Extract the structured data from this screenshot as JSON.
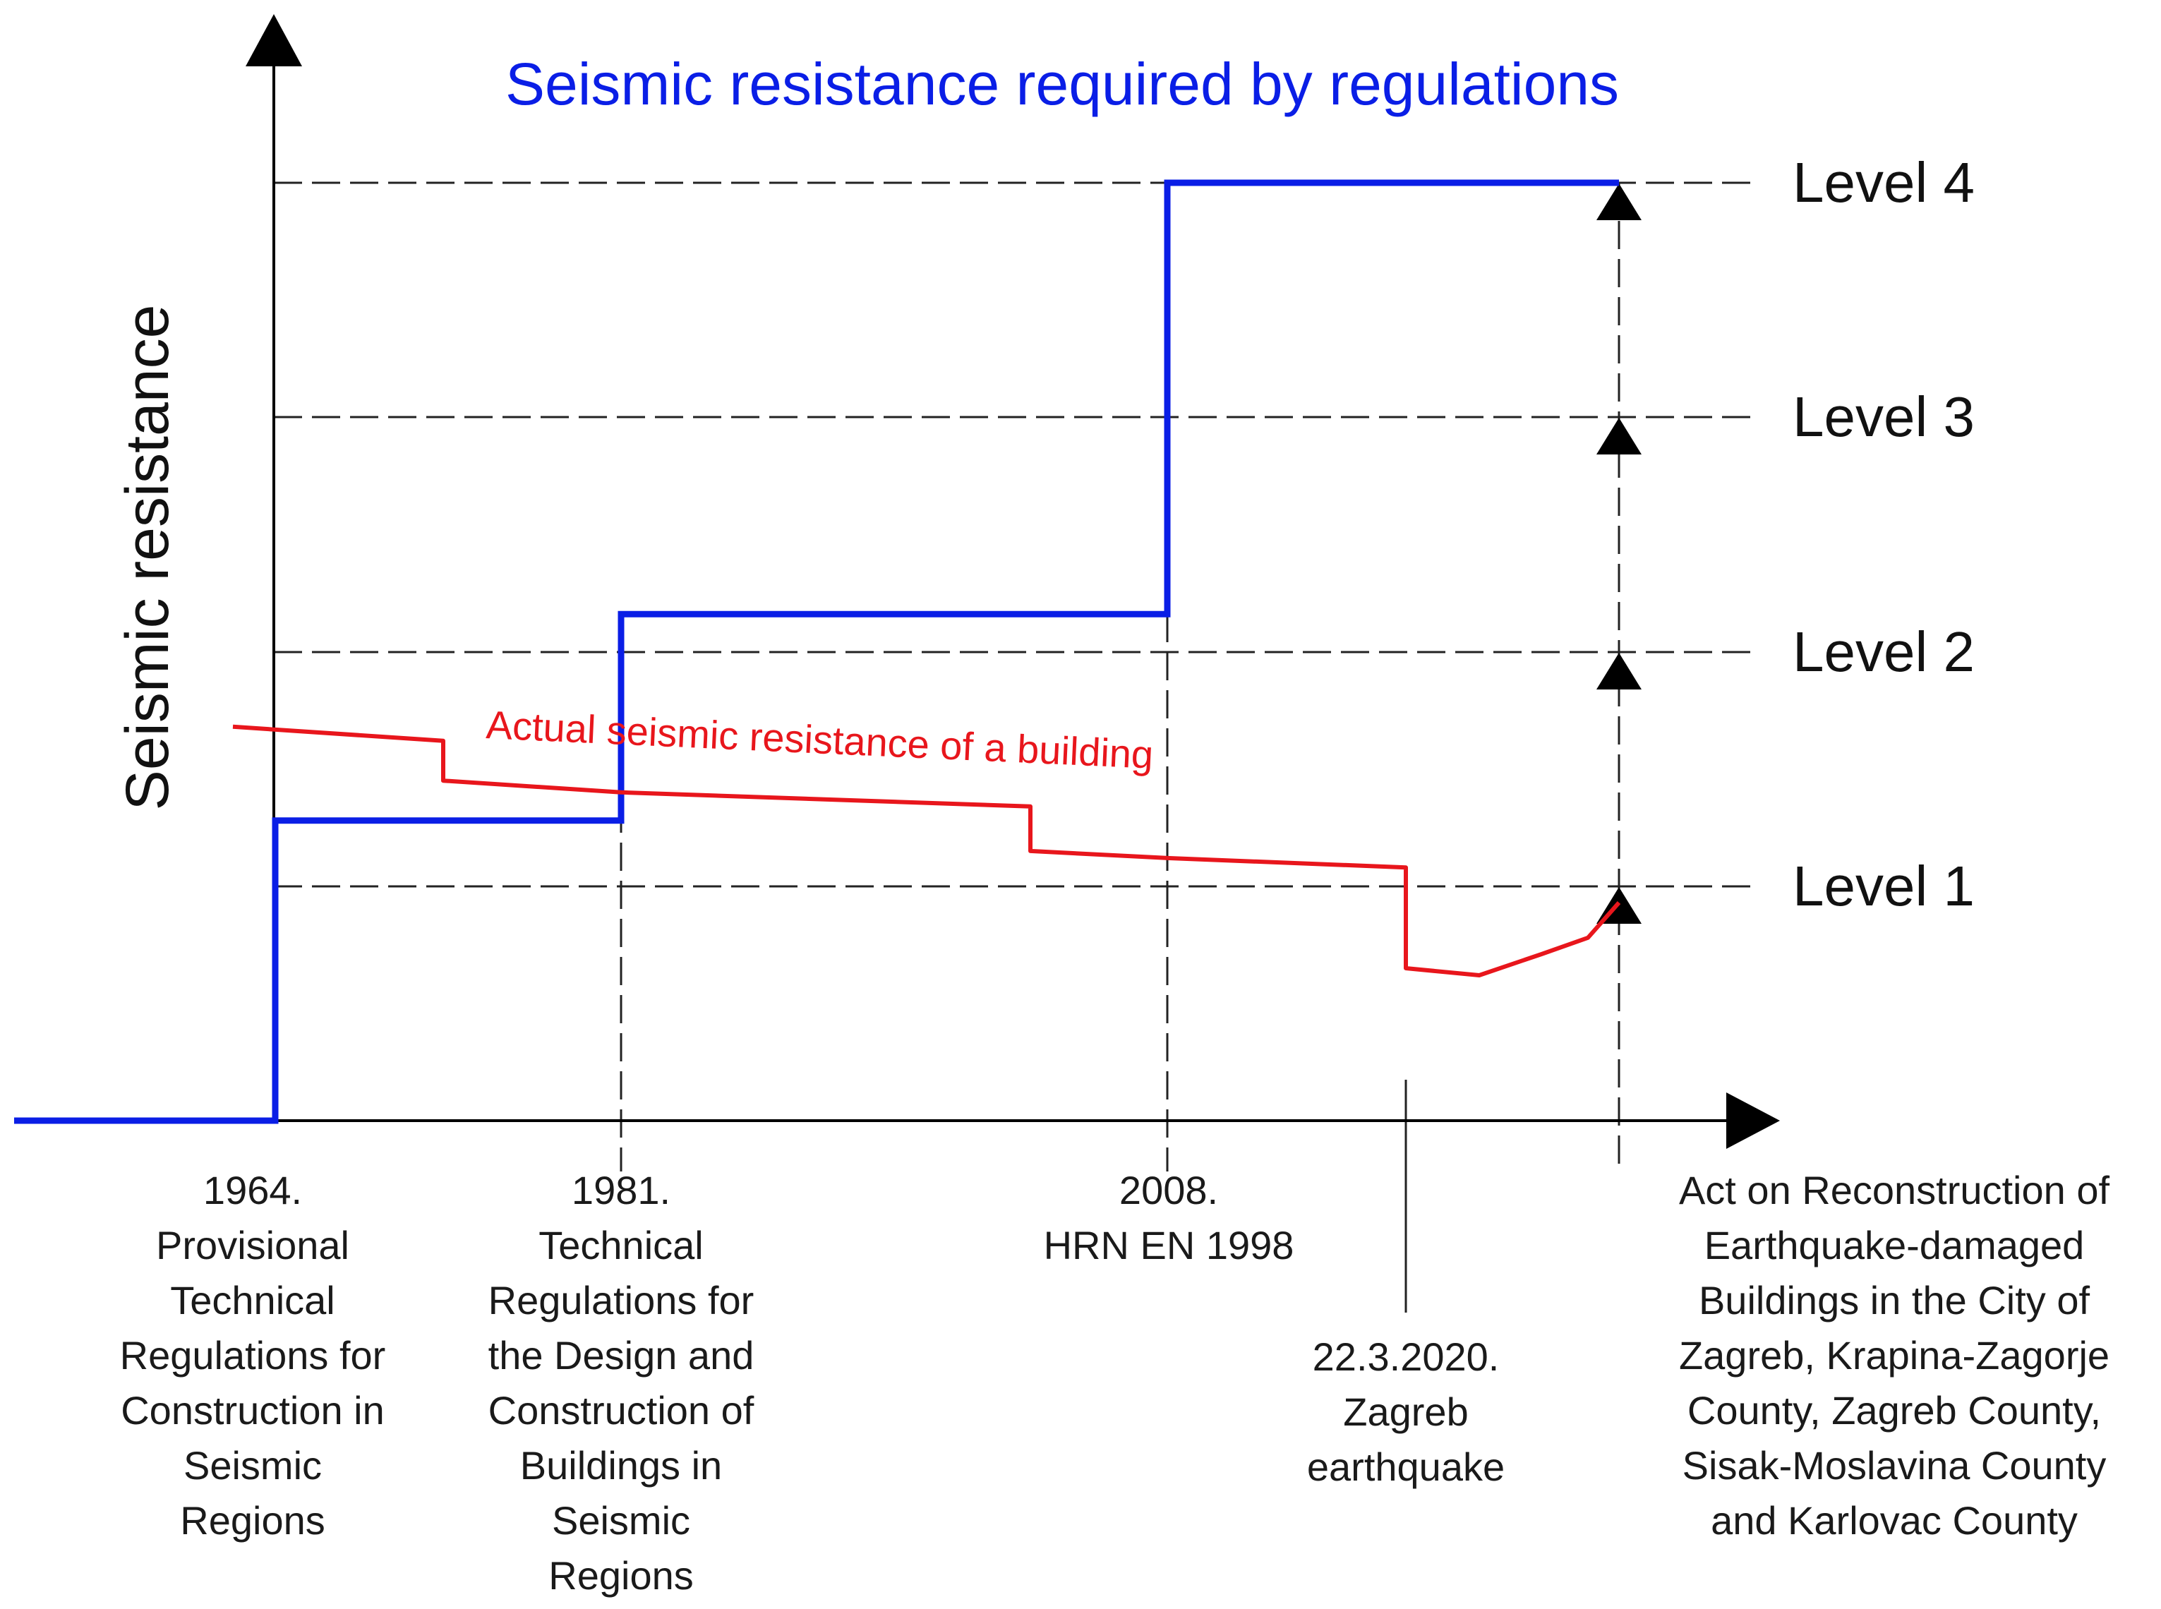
{
  "colors": {
    "required": "#0a1ee6",
    "actual": "#e8161c",
    "axis": "#000000",
    "text": "#1a1a1a"
  },
  "title": "Seismic resistance required by regulations",
  "y_axis_label": "Seismic resistance",
  "actual_label": "Actual seismic resistance of a building",
  "levels": [
    {
      "label": "Level 4",
      "value": 4
    },
    {
      "label": "Level 3",
      "value": 3
    },
    {
      "label": "Level 2",
      "value": 2
    },
    {
      "label": "Level 1",
      "value": 1
    }
  ],
  "milestones": [
    {
      "key": "m1964",
      "lines": [
        "1964.",
        "Provisional",
        "Technical",
        "Regulations for",
        "Construction in",
        "Seismic",
        "Regions"
      ]
    },
    {
      "key": "m1981",
      "lines": [
        "1981.",
        "Technical",
        "Regulations for",
        "the Design and",
        "Construction of",
        "Buildings in",
        "Seismic",
        "Regions"
      ]
    },
    {
      "key": "m2008",
      "lines": [
        "2008.",
        "HRN EN 1998"
      ]
    },
    {
      "key": "m2020",
      "lines": [
        "22.3.2020.",
        "Zagreb",
        "earthquake"
      ]
    },
    {
      "key": "mact",
      "lines": [
        "Act on Reconstruction of",
        "Earthquake-damaged",
        "Buildings in the City of",
        "Zagreb, Krapina-Zagorje",
        "County, Zagreb County,",
        "Sisak-Moslavina County",
        "and Karlovac County"
      ]
    }
  ],
  "chart_data": {
    "type": "line",
    "title": "Seismic resistance required by regulations",
    "ylabel": "Seismic resistance",
    "xlabel": "",
    "y_levels": [
      1,
      2,
      3,
      4
    ],
    "ylim": [
      0,
      4.6
    ],
    "series": [
      {
        "name": "Seismic resistance required by regulations",
        "shape": "step",
        "points": [
          {
            "t": "before 1964",
            "v": 0
          },
          {
            "t": "1964",
            "v": 0
          },
          {
            "t": "1964",
            "v": 1.28
          },
          {
            "t": "1981",
            "v": 1.28
          },
          {
            "t": "1981",
            "v": 2.16
          },
          {
            "t": "2008",
            "v": 2.16
          },
          {
            "t": "2008",
            "v": 4.0
          },
          {
            "t": "Act",
            "v": 4.0
          }
        ]
      },
      {
        "name": "Actual seismic resistance of a building",
        "shape": "declining with drops",
        "points": [
          {
            "t": "before 1964",
            "v": 1.68
          },
          {
            "t": "1964-1981",
            "v": 1.62
          },
          {
            "t": "1964-1981",
            "v": 1.45
          },
          {
            "t": "1981",
            "v": 1.4
          },
          {
            "t": "1981-2008",
            "v": 1.34
          },
          {
            "t": "1981-2008",
            "v": 1.15
          },
          {
            "t": "2008",
            "v": 1.12
          },
          {
            "t": "22.3.2020",
            "v": 1.08
          },
          {
            "t": "22.3.2020",
            "v": 0.65
          },
          {
            "t": "after 22.3.2020",
            "v": 0.62
          },
          {
            "t": "recovery",
            "v": 0.71
          },
          {
            "t": "recovery",
            "v": 0.78
          },
          {
            "t": "Act",
            "v": 0.93
          }
        ]
      }
    ]
  }
}
